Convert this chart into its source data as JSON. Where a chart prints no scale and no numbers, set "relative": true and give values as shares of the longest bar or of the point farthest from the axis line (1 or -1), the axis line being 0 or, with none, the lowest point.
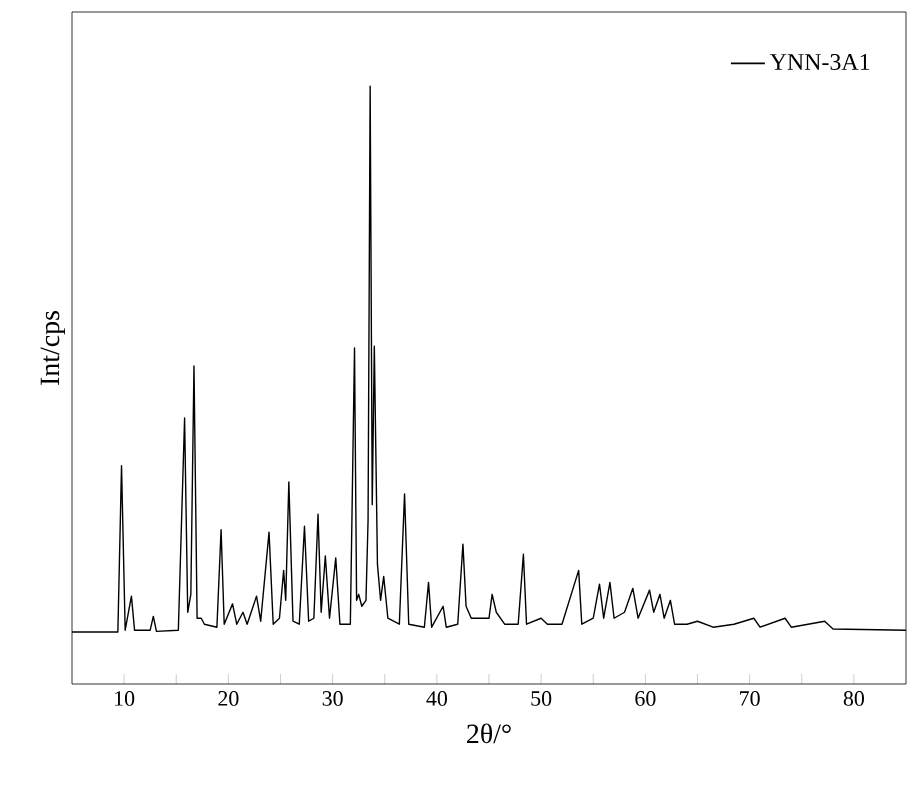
{
  "chart_data": {
    "type": "line",
    "xlabel": "2θ/°",
    "ylabel": "Int/cps",
    "relative": true,
    "xlim": [
      5,
      85
    ],
    "xticks": [
      10,
      {
        "value": 15,
        "label": null
      },
      20,
      {
        "value": 25,
        "label": null
      },
      30,
      {
        "value": 35,
        "label": null
      },
      40,
      {
        "value": 45,
        "label": null
      },
      50,
      {
        "value": 55,
        "label": null
      },
      60,
      {
        "value": 65,
        "label": null
      },
      70,
      {
        "value": 75,
        "label": null
      },
      80
    ],
    "tick_labels": "x",
    "grid": false,
    "legend": "top right",
    "marker": "none",
    "line_style": "solid",
    "series": [
      {
        "name": "YNN-3A1",
        "color": "#000000",
        "x": [
          5,
          9.4,
          9.75,
          10.1,
          10.7,
          11.0,
          12.5,
          12.8,
          13.1,
          15.2,
          15.8,
          16.1,
          16.4,
          16.7,
          17.0,
          17.4,
          17.7,
          18.9,
          19.3,
          19.6,
          20.4,
          20.8,
          21.4,
          21.8,
          22.7,
          23.1,
          23.9,
          24.3,
          24.9,
          25.3,
          25.5,
          25.8,
          26.2,
          26.8,
          27.3,
          27.7,
          28.2,
          28.6,
          28.9,
          29.3,
          29.7,
          30.3,
          30.7,
          31.7,
          32.1,
          32.3,
          32.5,
          32.8,
          33.2,
          33.4,
          33.6,
          33.8,
          34.0,
          34.3,
          34.6,
          34.9,
          35.3,
          36.4,
          36.9,
          37.3,
          38.8,
          39.2,
          39.5,
          40.6,
          40.9,
          42.0,
          42.5,
          42.8,
          43.3,
          45.0,
          45.3,
          45.7,
          46.5,
          47.8,
          48.3,
          48.6,
          50.0,
          50.6,
          52.0,
          53.6,
          53.9,
          55.0,
          55.6,
          56.0,
          56.6,
          57.0,
          58.0,
          58.8,
          59.3,
          60.4,
          60.8,
          61.4,
          61.8,
          62.4,
          62.8,
          64.0,
          65.0,
          66.5,
          68.5,
          70.4,
          71,
          73.4,
          74,
          77.2,
          78,
          85
        ],
        "values": [
          0.087,
          0.087,
          0.365,
          0.09,
          0.147,
          0.09,
          0.09,
          0.113,
          0.088,
          0.09,
          0.445,
          0.12,
          0.15,
          0.532,
          0.11,
          0.11,
          0.1,
          0.095,
          0.258,
          0.1,
          0.134,
          0.1,
          0.12,
          0.1,
          0.147,
          0.105,
          0.254,
          0.1,
          0.11,
          0.19,
          0.14,
          0.338,
          0.105,
          0.1,
          0.264,
          0.105,
          0.11,
          0.284,
          0.12,
          0.214,
          0.11,
          0.211,
          0.1,
          0.1,
          0.562,
          0.14,
          0.15,
          0.13,
          0.14,
          0.274,
          1.0,
          0.3,
          0.565,
          0.2,
          0.14,
          0.18,
          0.11,
          0.1,
          0.318,
          0.1,
          0.095,
          0.17,
          0.095,
          0.13,
          0.095,
          0.1,
          0.234,
          0.13,
          0.11,
          0.11,
          0.15,
          0.12,
          0.1,
          0.1,
          0.217,
          0.1,
          0.11,
          0.1,
          0.1,
          0.19,
          0.1,
          0.11,
          0.167,
          0.11,
          0.17,
          0.11,
          0.12,
          0.16,
          0.11,
          0.157,
          0.12,
          0.15,
          0.11,
          0.14,
          0.1,
          0.1,
          0.105,
          0.095,
          0.1,
          0.11,
          0.095,
          0.11,
          0.095,
          0.105,
          0.092,
          0.09
        ]
      }
    ]
  }
}
